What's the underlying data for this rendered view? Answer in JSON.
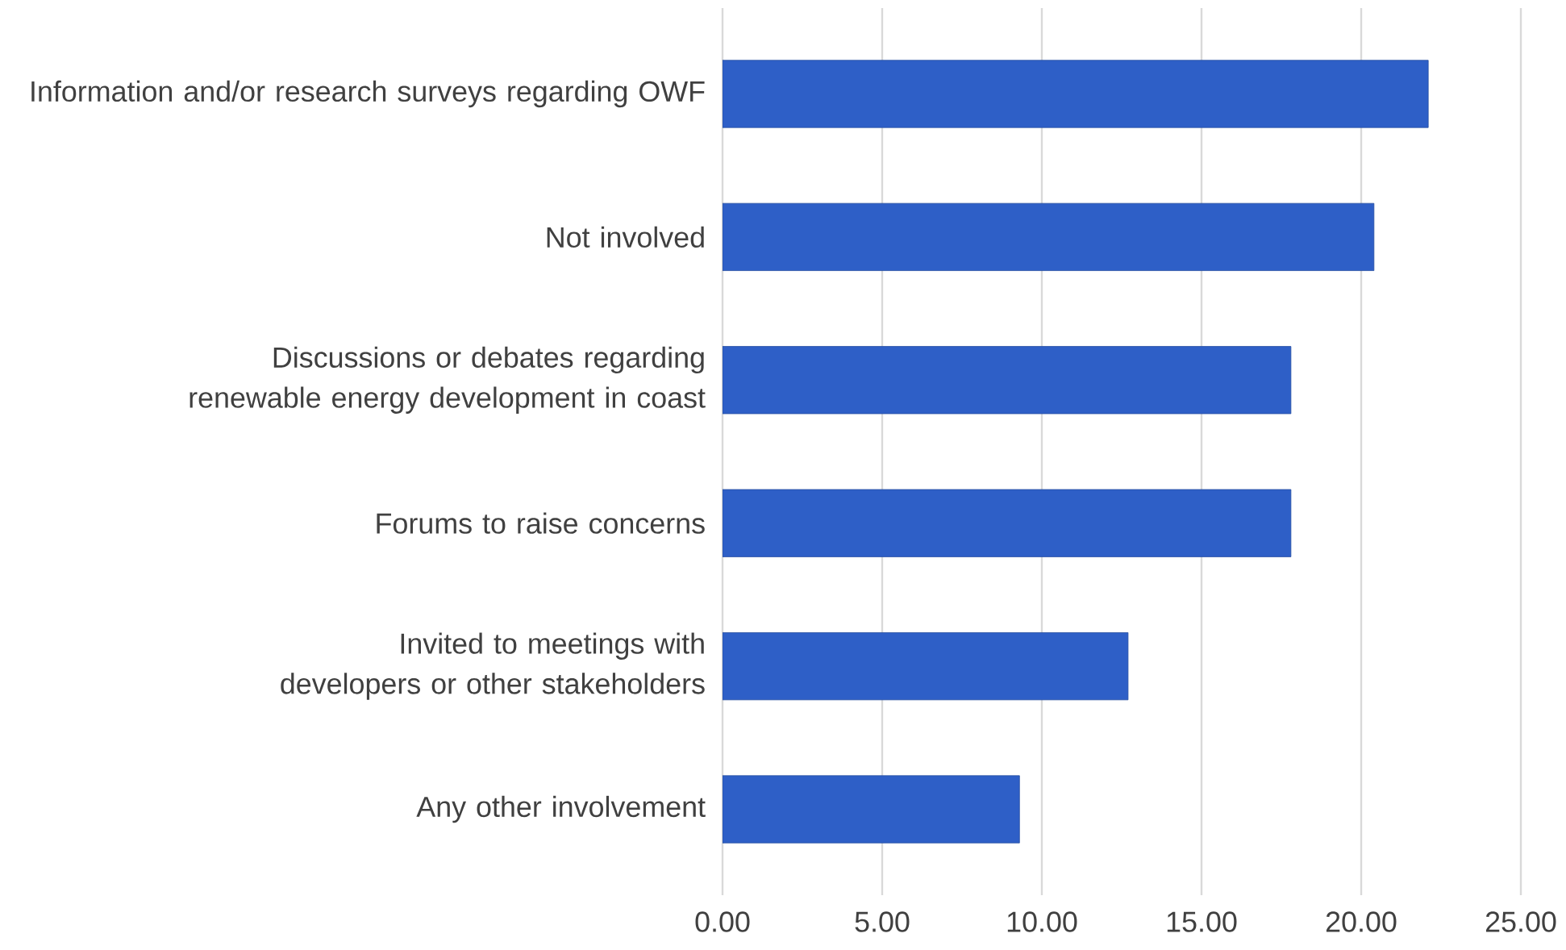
{
  "chart_data": {
    "type": "bar",
    "orientation": "horizontal",
    "categories": [
      "Information and/or research surveys regarding OWF",
      "Not involved",
      "Discussions or debates regarding renewable energy development in coast",
      "Forums to raise concerns",
      "Invited to meetings with developers or other stakeholders",
      "Any other involvement"
    ],
    "values": [
      22.1,
      20.4,
      17.8,
      17.8,
      12.7,
      9.3
    ],
    "color": "#2e5fc7",
    "xlim": [
      0,
      25
    ],
    "xticks": [
      {
        "value": 0,
        "label": "0.00"
      },
      {
        "value": 5,
        "label": "5.00"
      },
      {
        "value": 10,
        "label": "10.00"
      },
      {
        "value": 15,
        "label": "15.00"
      },
      {
        "value": 20,
        "label": "20.00"
      },
      {
        "value": 25,
        "label": "25.00"
      }
    ],
    "grid": "x"
  }
}
